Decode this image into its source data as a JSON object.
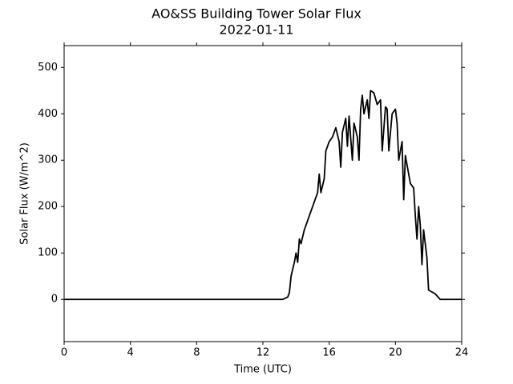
{
  "chart_data": {
    "type": "line",
    "title": "AO&SS Building Tower Solar Flux",
    "subtitle": "2022-01-11",
    "xlabel": "Time (UTC)",
    "ylabel": "Solar Flux (W/m^2)",
    "color": "#000000",
    "x": [
      0,
      13.2,
      13.5,
      13.6,
      13.7,
      13.9,
      14.0,
      14.1,
      14.2,
      14.3,
      14.5,
      14.7,
      14.9,
      15.1,
      15.3,
      15.4,
      15.5,
      15.7,
      15.8,
      16.0,
      16.2,
      16.4,
      16.6,
      16.7,
      16.8,
      17.0,
      17.1,
      17.2,
      17.4,
      17.5,
      17.7,
      17.8,
      17.9,
      18.0,
      18.1,
      18.3,
      18.4,
      18.5,
      18.7,
      18.9,
      19.1,
      19.2,
      19.4,
      19.5,
      19.6,
      19.8,
      20.0,
      20.1,
      20.2,
      20.4,
      20.5,
      20.6,
      20.8,
      20.9,
      21.1,
      21.2,
      21.3,
      21.4,
      21.5,
      21.6,
      21.7,
      21.8,
      21.9,
      22.0,
      22.4,
      22.7,
      24
    ],
    "values": [
      0,
      0,
      5,
      15,
      50,
      80,
      100,
      80,
      130,
      120,
      150,
      170,
      190,
      210,
      230,
      270,
      230,
      260,
      320,
      340,
      350,
      370,
      340,
      285,
      360,
      390,
      330,
      395,
      300,
      380,
      350,
      300,
      410,
      440,
      400,
      430,
      390,
      450,
      445,
      420,
      430,
      320,
      415,
      410,
      320,
      400,
      410,
      380,
      300,
      340,
      215,
      310,
      270,
      250,
      240,
      180,
      130,
      200,
      160,
      75,
      150,
      120,
      90,
      20,
      12,
      0,
      0
    ],
    "xlim": [
      0,
      24
    ],
    "xticks": [
      0,
      4,
      8,
      12,
      16,
      20,
      24
    ],
    "ylim": [
      -91,
      547
    ],
    "yticks": [
      0,
      100,
      200,
      300,
      400,
      500
    ]
  }
}
